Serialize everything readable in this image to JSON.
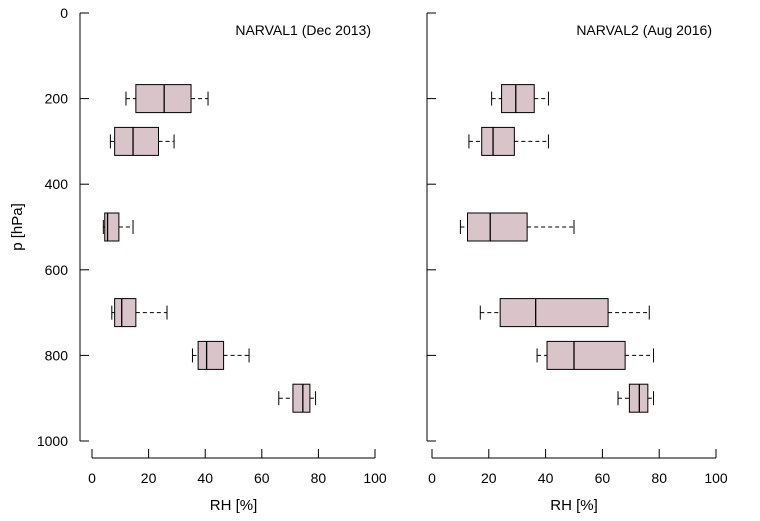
{
  "chart_data": [
    {
      "type": "boxplot",
      "title": "NARVAL1 (Dec 2013)",
      "xlabel": "RH [%]",
      "ylabel": "p [hPa]",
      "xlim": [
        0,
        100
      ],
      "ylim": [
        1000,
        0
      ],
      "xticks": [
        0,
        20,
        40,
        60,
        80,
        100
      ],
      "yticks": [
        0,
        200,
        400,
        600,
        800,
        1000
      ],
      "box_color": "#d8c4c9",
      "boxes": [
        {
          "p": 200,
          "whisker_low": 12,
          "q1": 15.5,
          "median": 25.5,
          "q3": 35,
          "whisker_high": 41
        },
        {
          "p": 300,
          "whisker_low": 6.5,
          "q1": 8,
          "median": 14.5,
          "q3": 23.5,
          "whisker_high": 29
        },
        {
          "p": 500,
          "whisker_low": 4,
          "q1": 4.5,
          "median": 5.5,
          "q3": 9.5,
          "whisker_high": 14.5
        },
        {
          "p": 700,
          "whisker_low": 7,
          "q1": 8,
          "median": 10.5,
          "q3": 15.5,
          "whisker_high": 26.5
        },
        {
          "p": 800,
          "whisker_low": 35.5,
          "q1": 37.5,
          "median": 40.5,
          "q3": 46.5,
          "whisker_high": 55.5
        },
        {
          "p": 900,
          "whisker_low": 66,
          "q1": 71,
          "median": 74.5,
          "q3": 77,
          "whisker_high": 79
        }
      ]
    },
    {
      "type": "boxplot",
      "title": "NARVAL2 (Aug 2016)",
      "xlabel": "RH [%]",
      "ylabel": "",
      "xlim": [
        0,
        100
      ],
      "ylim": [
        1000,
        0
      ],
      "xticks": [
        0,
        20,
        40,
        60,
        80,
        100
      ],
      "yticks": [
        0,
        200,
        400,
        600,
        800,
        1000
      ],
      "box_color": "#d8c4c9",
      "boxes": [
        {
          "p": 200,
          "whisker_low": 21,
          "q1": 24.5,
          "median": 29.5,
          "q3": 36,
          "whisker_high": 41
        },
        {
          "p": 300,
          "whisker_low": 13,
          "q1": 17.5,
          "median": 21.5,
          "q3": 29,
          "whisker_high": 41
        },
        {
          "p": 500,
          "whisker_low": 10,
          "q1": 12.5,
          "median": 20.5,
          "q3": 33.5,
          "whisker_high": 50
        },
        {
          "p": 700,
          "whisker_low": 17,
          "q1": 24,
          "median": 36.5,
          "q3": 62,
          "whisker_high": 76.5
        },
        {
          "p": 800,
          "whisker_low": 37,
          "q1": 40.5,
          "median": 50,
          "q3": 68,
          "whisker_high": 78
        },
        {
          "p": 900,
          "whisker_low": 65.5,
          "q1": 69.5,
          "median": 73,
          "q3": 76,
          "whisker_high": 78
        }
      ]
    }
  ]
}
